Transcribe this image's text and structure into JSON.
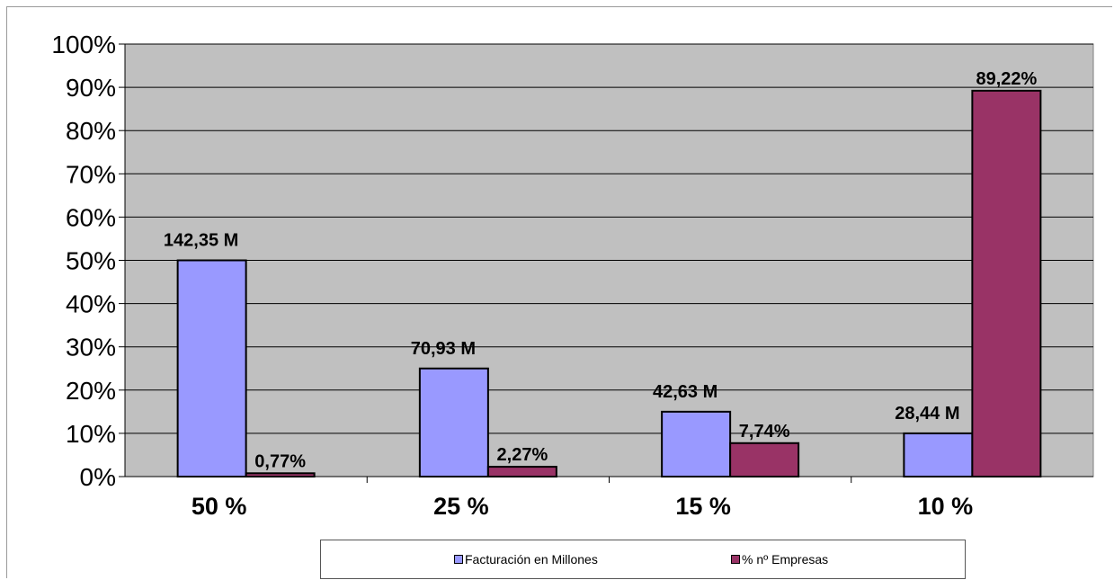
{
  "chart_data": {
    "type": "bar",
    "categories": [
      "50 %",
      "25 %",
      "15 %",
      "10 %"
    ],
    "series": [
      {
        "name": "Facturación en Millones",
        "color": "#9999ff",
        "values": [
          50,
          25,
          15,
          10
        ],
        "labels": [
          "142,35 M",
          "70,93 M",
          "42,63 M",
          "28,44 M"
        ]
      },
      {
        "name": "% nº Empresas",
        "color": "#993366",
        "values": [
          0.77,
          2.27,
          7.74,
          89.22
        ],
        "labels": [
          "0,77%",
          "2,27%",
          "7,74%",
          "89,22%"
        ]
      }
    ],
    "ylim": [
      0,
      100
    ],
    "yticks": [
      "0%",
      "10%",
      "20%",
      "30%",
      "40%",
      "50%",
      "60%",
      "70%",
      "80%",
      "90%",
      "100%"
    ],
    "grid": true,
    "plot_background": "#c0c0c0",
    "legend_position": "bottom"
  }
}
